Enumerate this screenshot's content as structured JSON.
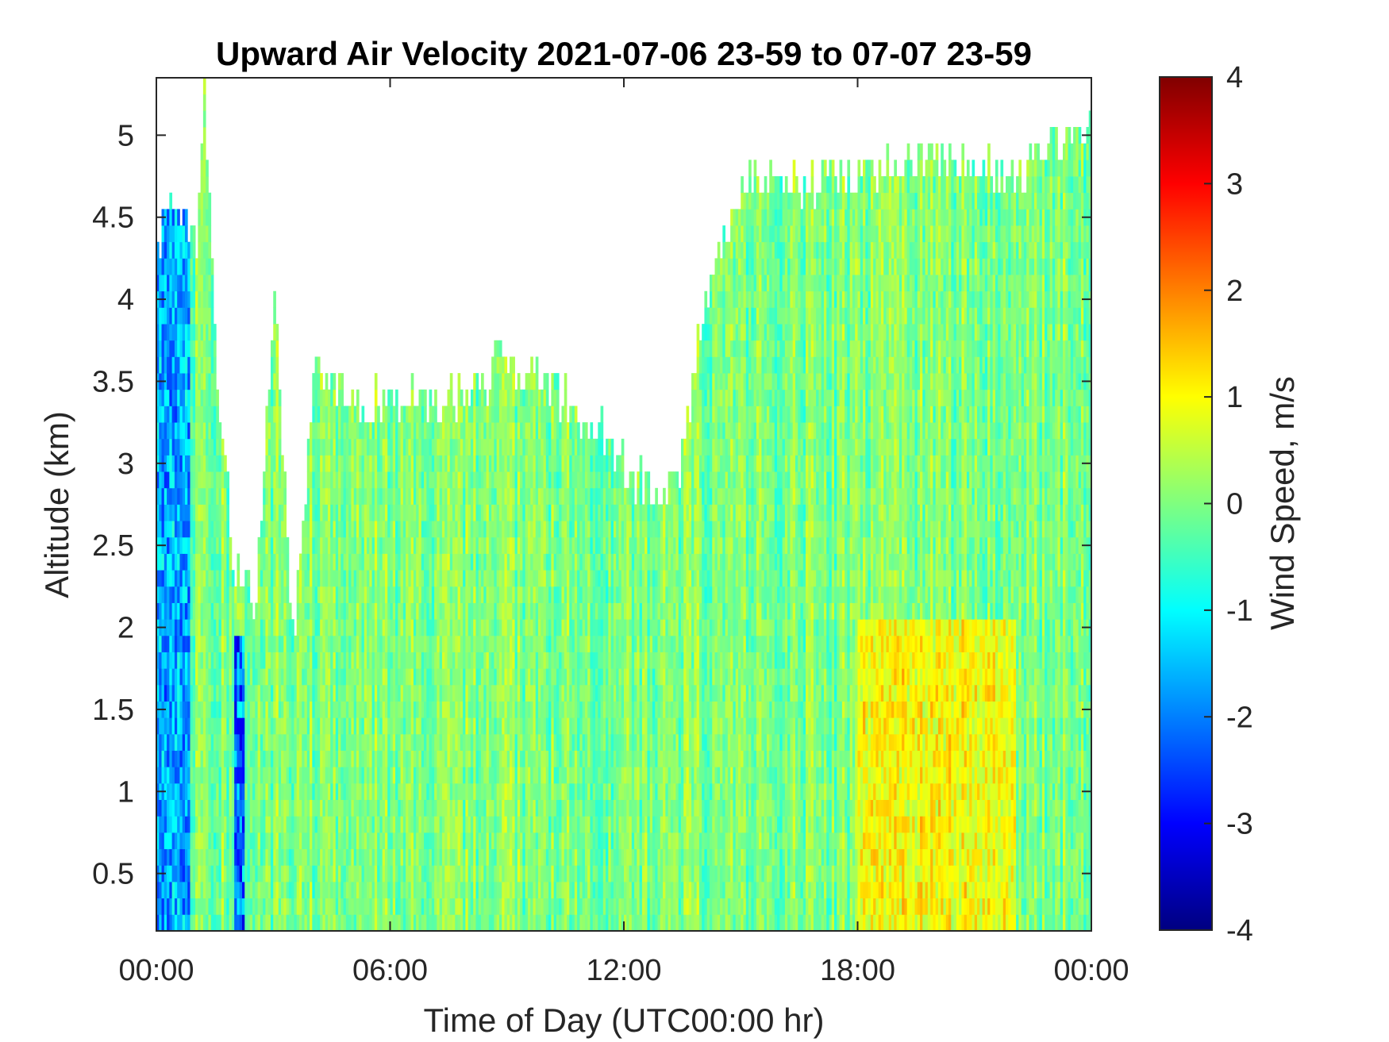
{
  "chart_data": {
    "type": "heatmap",
    "title": "Upward Air Velocity 2021-07-06 23-59 to 07-07 23-59",
    "xlabel": "Time of Day (UTC00:00 hr)",
    "ylabel": "Altitude (km)",
    "colorbar_label": "Wind Speed, m/s",
    "xlim": [
      0,
      24
    ],
    "ylim": [
      0.15,
      5.35
    ],
    "clim": [
      -4,
      4
    ],
    "colormap": "jet",
    "x_ticks": [
      0,
      6,
      12,
      18,
      24
    ],
    "x_tick_labels": [
      "00:00",
      "06:00",
      "12:00",
      "18:00",
      "00:00"
    ],
    "y_ticks": [
      0.5,
      1,
      1.5,
      2,
      2.5,
      3,
      3.5,
      4,
      4.5,
      5
    ],
    "y_tick_labels": [
      "0.5",
      "1",
      "1.5",
      "2",
      "2.5",
      "3",
      "3.5",
      "4",
      "4.5",
      "5"
    ],
    "colorbar_ticks": [
      -4,
      -3,
      -2,
      -1,
      0,
      1,
      2,
      3,
      4
    ],
    "colorbar_tick_labels": [
      "-4",
      "-3",
      "-2",
      "-1",
      "0",
      "1",
      "2",
      "3",
      "4"
    ],
    "grid": false,
    "data_top_envelope": {
      "description": "approximate maximum altitude (km) with valid data at each time",
      "time_hr": [
        0,
        0.5,
        1.0,
        1.2,
        1.5,
        2.0,
        2.5,
        3.0,
        3.5,
        4.0,
        4.5,
        5,
        6,
        7,
        8,
        9,
        10,
        11,
        11.5,
        12,
        12.5,
        13,
        13.5,
        14,
        14.5,
        15,
        15.5,
        16,
        17,
        18,
        19,
        20,
        21,
        22,
        23,
        24
      ],
      "top_km": [
        4.3,
        4.5,
        4.3,
        5.3,
        3.5,
        2.3,
        2.1,
        3.9,
        1.8,
        3.6,
        3.4,
        3.3,
        3.4,
        3.3,
        3.4,
        3.6,
        3.4,
        3.2,
        3.1,
        2.9,
        2.8,
        2.8,
        3.0,
        3.9,
        4.3,
        4.6,
        4.7,
        4.6,
        4.7,
        4.7,
        4.8,
        4.8,
        4.8,
        4.7,
        4.9,
        5.0
      ]
    },
    "features": [
      {
        "time_hr": [
          0,
          0.8
        ],
        "altitude_km": [
          0.15,
          4.5
        ],
        "wind_m_s": -2.5,
        "note": "strong downward motion near start of day"
      },
      {
        "time_hr": [
          2.0,
          2.2
        ],
        "altitude_km": [
          0.15,
          1.9
        ],
        "wind_m_s": -3.5,
        "note": "narrow downward streak"
      },
      {
        "time_hr": [
          18,
          22
        ],
        "altitude_km": [
          0.15,
          2.0
        ],
        "wind_m_s": 1.5,
        "note": "mixed updrafts and downdrafts in evening"
      }
    ]
  }
}
